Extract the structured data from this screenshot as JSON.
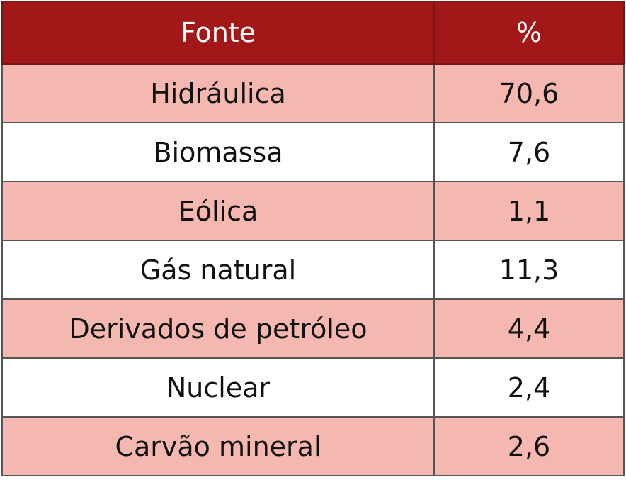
{
  "table": {
    "header": [
      "Fonte",
      "%"
    ],
    "rows": [
      [
        "Hidráulica",
        "70,6"
      ],
      [
        "Biomassa",
        "7,6"
      ],
      [
        "Eólica",
        "1,1"
      ],
      [
        "Gás natural",
        "11,3"
      ],
      [
        "Derivados de petróleo",
        "4,4"
      ],
      [
        "Nuclear",
        "2,4"
      ],
      [
        "Carvão mineral",
        "2,6"
      ]
    ]
  }
}
